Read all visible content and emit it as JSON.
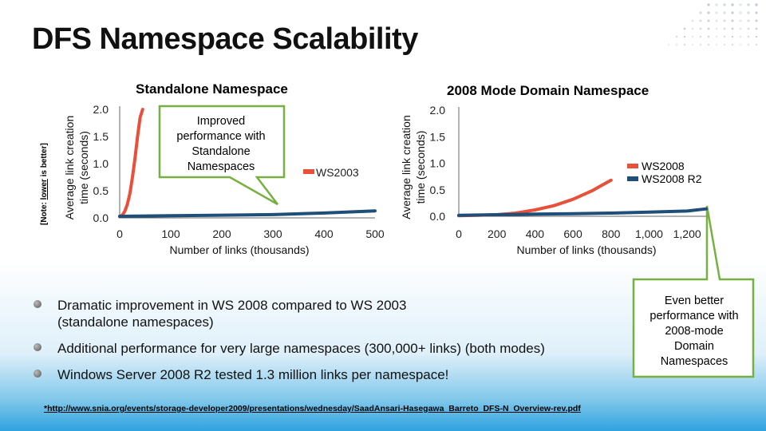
{
  "slide": {
    "title": "DFS Namespace Scalability",
    "note_prefix": "[Note: ",
    "note_emph": "lower",
    "note_suffix": " is better]",
    "footer_link": "*http://www.snia.org/events/storage-developer2009/presentations/wednesday/SaadAnsari-Hasegawa_Barreto_DFS-N_Overview-rev.pdf"
  },
  "callouts": {
    "left": [
      "Improved",
      "performance with",
      "Standalone",
      "Namespaces"
    ],
    "right": [
      "Even better",
      "performance with",
      "2008-mode",
      "Domain",
      "Namespaces"
    ]
  },
  "bullets": [
    {
      "text": "Dramatic improvement in WS 2008 compared to WS 2003",
      "text2": "(standalone namespaces)"
    },
    {
      "text": "Additional performance for very large namespaces (300,000+ links) (both modes)",
      "text2": ""
    },
    {
      "text": "Windows Server 2008 R2 tested 1.3 million links per namespace!",
      "text2": ""
    }
  ],
  "colors": {
    "ws2003": "#e8503a",
    "ws2008": "#e8503a",
    "ws2008r2": "#1f4e79",
    "ws2008_standalone": "#1f4e79",
    "callout": "#76b041"
  },
  "chart_data": [
    {
      "type": "line",
      "title": "Standalone Namespace",
      "xlabel": "Number of links (thousands)",
      "ylabel": "Average link creation time (seconds)",
      "xlim": [
        0,
        500
      ],
      "ylim": [
        0,
        2.0
      ],
      "xticks": [
        "0",
        "100",
        "200",
        "300",
        "400",
        "500"
      ],
      "xtick_values": [
        0,
        100,
        200,
        300,
        400,
        500
      ],
      "yticks": [
        "0.0",
        "0.5",
        "1.0",
        "1.5",
        "2.0"
      ],
      "ytick_values": [
        0,
        0.5,
        1.0,
        1.5,
        2.0
      ],
      "series": [
        {
          "name": "WS2003",
          "color": "#e8503a",
          "x": [
            0,
            5,
            10,
            15,
            20,
            25,
            30,
            35,
            40,
            45
          ],
          "y": [
            0.02,
            0.05,
            0.12,
            0.25,
            0.45,
            0.75,
            1.1,
            1.5,
            1.85,
            2.0
          ]
        },
        {
          "name": "",
          "color": "#1f4e79",
          "x": [
            0,
            100,
            200,
            300,
            400,
            500
          ],
          "y": [
            0.03,
            0.04,
            0.05,
            0.06,
            0.09,
            0.13
          ]
        }
      ],
      "series_label": "WS2003"
    },
    {
      "type": "line",
      "title": "2008 Mode Domain Namespace",
      "xlabel": "Number of links (thousands)",
      "ylabel": "Average link creation time (seconds)",
      "xlim": [
        0,
        1300
      ],
      "ylim": [
        0,
        2.0
      ],
      "xticks": [
        "0",
        "200",
        "400",
        "600",
        "800",
        "1,000",
        "1,200"
      ],
      "xtick_values": [
        0,
        200,
        400,
        600,
        800,
        1000,
        1200
      ],
      "yticks": [
        "0.0",
        "0.5",
        "1.0",
        "1.5",
        "2.0"
      ],
      "ytick_values": [
        0,
        0.5,
        1.0,
        1.5,
        2.0
      ],
      "legend": [
        "WS2008",
        "WS2008 R2"
      ],
      "series": [
        {
          "name": "WS2008",
          "color": "#e8503a",
          "x": [
            0,
            100,
            200,
            300,
            400,
            500,
            600,
            700,
            750,
            800
          ],
          "y": [
            0.01,
            0.02,
            0.03,
            0.06,
            0.12,
            0.2,
            0.32,
            0.48,
            0.58,
            0.68
          ]
        },
        {
          "name": "WS2008 R2",
          "color": "#1f4e79",
          "x": [
            0,
            200,
            400,
            600,
            800,
            1000,
            1200,
            1300
          ],
          "y": [
            0.02,
            0.03,
            0.04,
            0.05,
            0.06,
            0.08,
            0.1,
            0.14
          ]
        }
      ]
    }
  ]
}
